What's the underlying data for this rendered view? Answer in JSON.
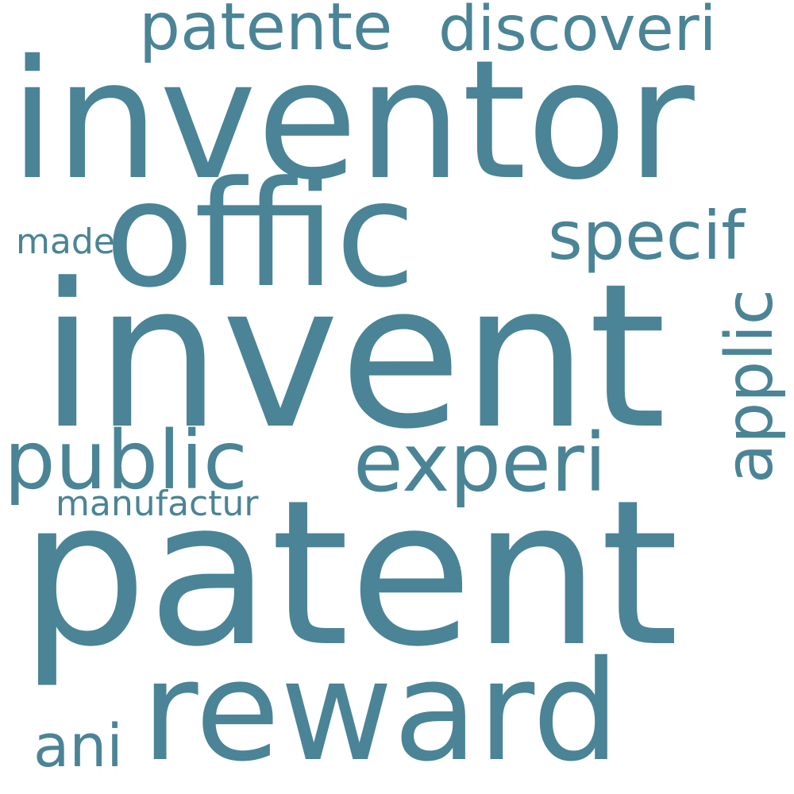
{
  "colors": {
    "word": "#4a8496",
    "background": "#ffffff"
  },
  "words": {
    "patent": "patent",
    "invent": "invent",
    "inventor": "inventor",
    "offic": "offic",
    "reward": "reward",
    "public": "public",
    "experi": "experi",
    "specif": "specif",
    "applic": "applic",
    "patente": "patente",
    "discoveri": "discoveri",
    "made": "made",
    "manufactur": "manufactur",
    "ani": "ani"
  }
}
